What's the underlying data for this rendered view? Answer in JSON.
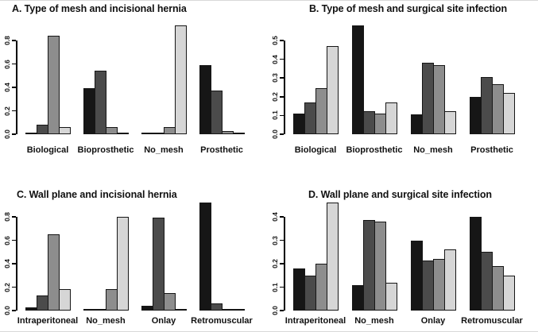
{
  "figure": {
    "background": "#ffffff",
    "frame_rule_color": "#d8d8d8"
  },
  "palette": {
    "bar_colors": [
      "#161616",
      "#4b4b4b",
      "#8d8d8d",
      "#d6d6d6"
    ],
    "bar_border": "#161616",
    "axis_color": "#000000",
    "text_color": "#111111"
  },
  "chart_data": [
    {
      "id": "A",
      "type": "bar",
      "title": "A. Type of mesh and incisional hernia",
      "categories": [
        "Biological",
        "Bioprosthetic",
        "No_mesh",
        "Prosthetic"
      ],
      "y_ticks": [
        "0.0",
        "0.2",
        "0.4",
        "0.6",
        "0.8"
      ],
      "y_axis_max_tick": 0.8,
      "ylim": [
        0,
        0.95
      ],
      "grid": false,
      "legend": "none",
      "series": [
        {
          "name": "shade-black",
          "color_index": 0,
          "values": [
            0.01,
            0.39,
            0.003,
            0.59
          ]
        },
        {
          "name": "shade-dark-gray",
          "color_index": 1,
          "values": [
            0.08,
            0.54,
            0.01,
            0.37
          ]
        },
        {
          "name": "shade-mid-gray",
          "color_index": 2,
          "values": [
            0.84,
            0.06,
            0.06,
            0.03
          ]
        },
        {
          "name": "shade-light-gray",
          "color_index": 3,
          "values": [
            0.06,
            0.005,
            0.93,
            0.005
          ]
        }
      ]
    },
    {
      "id": "B",
      "type": "bar",
      "title": "B. Type of mesh and surgical site infection",
      "categories": [
        "Biological",
        "Bioprosthetic",
        "No_mesh",
        "Prosthetic"
      ],
      "y_ticks": [
        "0.0",
        "0.1",
        "0.2",
        "0.3",
        "0.4",
        "0.5"
      ],
      "y_axis_max_tick": 0.5,
      "ylim": [
        0,
        0.59
      ],
      "grid": false,
      "legend": "none",
      "series": [
        {
          "name": "shade-black",
          "color_index": 0,
          "values": [
            0.11,
            0.58,
            0.105,
            0.2
          ]
        },
        {
          "name": "shade-dark-gray",
          "color_index": 1,
          "values": [
            0.17,
            0.125,
            0.38,
            0.305
          ]
        },
        {
          "name": "shade-mid-gray",
          "color_index": 2,
          "values": [
            0.245,
            0.11,
            0.37,
            0.265
          ]
        },
        {
          "name": "shade-light-gray",
          "color_index": 3,
          "values": [
            0.47,
            0.17,
            0.125,
            0.22
          ]
        }
      ]
    },
    {
      "id": "C",
      "type": "bar",
      "title": "C. Wall plane and incisional hernia",
      "categories": [
        "Intraperitoneal",
        "No_mesh",
        "Onlay",
        "Retromuscular"
      ],
      "y_ticks": [
        "0.0",
        "0.2",
        "0.4",
        "0.6",
        "0.8"
      ],
      "y_axis_max_tick": 0.8,
      "ylim": [
        0,
        0.95
      ],
      "grid": false,
      "legend": "none",
      "series": [
        {
          "name": "shade-black",
          "color_index": 0,
          "values": [
            0.03,
            0.002,
            0.04,
            0.92
          ]
        },
        {
          "name": "shade-dark-gray",
          "color_index": 1,
          "values": [
            0.13,
            0.008,
            0.79,
            0.06
          ]
        },
        {
          "name": "shade-mid-gray",
          "color_index": 2,
          "values": [
            0.65,
            0.18,
            0.15,
            0.015
          ]
        },
        {
          "name": "shade-light-gray",
          "color_index": 3,
          "values": [
            0.18,
            0.8,
            0.01,
            0.005
          ]
        }
      ]
    },
    {
      "id": "D",
      "type": "bar",
      "title": "D. Wall plane and surgical site infection",
      "categories": [
        "Intraperitoneal",
        "No_mesh",
        "Onlay",
        "Retromuscular"
      ],
      "y_ticks": [
        "0.0",
        "0.1",
        "0.2",
        "0.3",
        "0.4"
      ],
      "y_axis_max_tick": 0.4,
      "ylim": [
        0,
        0.47
      ],
      "grid": false,
      "legend": "none",
      "series": [
        {
          "name": "shade-black",
          "color_index": 0,
          "values": [
            0.18,
            0.11,
            0.3,
            0.4
          ]
        },
        {
          "name": "shade-dark-gray",
          "color_index": 1,
          "values": [
            0.15,
            0.385,
            0.215,
            0.25
          ]
        },
        {
          "name": "shade-mid-gray",
          "color_index": 2,
          "values": [
            0.2,
            0.38,
            0.22,
            0.19
          ]
        },
        {
          "name": "shade-light-gray",
          "color_index": 3,
          "values": [
            0.46,
            0.12,
            0.26,
            0.15
          ]
        }
      ]
    }
  ]
}
